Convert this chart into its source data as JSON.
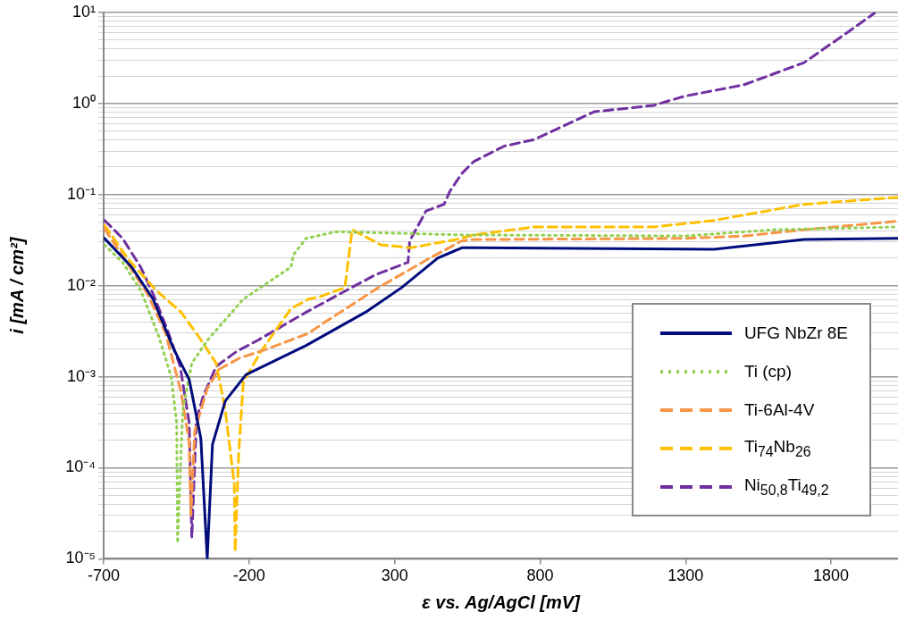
{
  "chart_data": {
    "type": "line",
    "xlabel": "ε vs. Ag/AgCl [mV]",
    "ylabel": "i [mA / cm²]",
    "xlim": [
      -700,
      2030
    ],
    "xticks": [
      -700,
      -200,
      300,
      800,
      1300,
      1800
    ],
    "ylim": [
      1e-05,
      10
    ],
    "log": "y",
    "grid": "y",
    "legend": "bottom right",
    "marker": "none",
    "yticks": [
      {
        "value": 1e-05,
        "label": "10⁻⁵"
      },
      {
        "value": 2e-05,
        "label": null
      },
      {
        "value": 3e-05,
        "label": null
      },
      {
        "value": 4e-05,
        "label": null
      },
      {
        "value": 5e-05,
        "label": null
      },
      {
        "value": 6e-05,
        "label": null
      },
      {
        "value": 7e-05,
        "label": null
      },
      {
        "value": 8e-05,
        "label": null
      },
      {
        "value": 9e-05,
        "label": null
      },
      {
        "value": 0.0001,
        "label": "10⁻⁴"
      },
      {
        "value": 0.0002,
        "label": null
      },
      {
        "value": 0.0003,
        "label": null
      },
      {
        "value": 0.0004,
        "label": null
      },
      {
        "value": 0.0005,
        "label": null
      },
      {
        "value": 0.0006,
        "label": null
      },
      {
        "value": 0.0007,
        "label": null
      },
      {
        "value": 0.0008,
        "label": null
      },
      {
        "value": 0.0009,
        "label": null
      },
      {
        "value": 0.001,
        "label": "10⁻³"
      },
      {
        "value": 0.002,
        "label": null
      },
      {
        "value": 0.003,
        "label": null
      },
      {
        "value": 0.004,
        "label": null
      },
      {
        "value": 0.005,
        "label": null
      },
      {
        "value": 0.006,
        "label": null
      },
      {
        "value": 0.007,
        "label": null
      },
      {
        "value": 0.008,
        "label": null
      },
      {
        "value": 0.009,
        "label": null
      },
      {
        "value": 0.01,
        "label": "10⁻²"
      },
      {
        "value": 0.02,
        "label": null
      },
      {
        "value": 0.03,
        "label": null
      },
      {
        "value": 0.04,
        "label": null
      },
      {
        "value": 0.05,
        "label": null
      },
      {
        "value": 0.06,
        "label": null
      },
      {
        "value": 0.07,
        "label": null
      },
      {
        "value": 0.08,
        "label": null
      },
      {
        "value": 0.09,
        "label": null
      },
      {
        "value": 0.1,
        "label": "10⁻¹"
      },
      {
        "value": 0.2,
        "label": null
      },
      {
        "value": 0.3,
        "label": null
      },
      {
        "value": 0.4,
        "label": null
      },
      {
        "value": 0.5,
        "label": null
      },
      {
        "value": 0.6,
        "label": null
      },
      {
        "value": 0.7,
        "label": null
      },
      {
        "value": 0.8,
        "label": null
      },
      {
        "value": 0.9,
        "label": null
      },
      {
        "value": 1,
        "label": "10⁰"
      },
      {
        "value": 2,
        "label": null
      },
      {
        "value": 3,
        "label": null
      },
      {
        "value": 4,
        "label": null
      },
      {
        "value": 5,
        "label": null
      },
      {
        "value": 6,
        "label": null
      },
      {
        "value": 7,
        "label": null
      },
      {
        "value": 8,
        "label": null
      },
      {
        "value": 9,
        "label": null
      },
      {
        "value": 10,
        "label": "10¹"
      }
    ],
    "series": [
      {
        "name": "UFG NbZr 8E",
        "color": "#000c7b",
        "line_style": "solid",
        "x": [
          -697,
          -604,
          -530,
          -459,
          -406,
          -366,
          -344,
          -326,
          -282,
          -211,
          -4,
          200,
          324,
          448,
          531,
          572,
          1398,
          1707,
          2030
        ],
        "values": [
          0.033,
          0.016,
          0.0071,
          0.002,
          0.00093,
          0.00021,
          1e-05,
          0.00018,
          0.00054,
          0.00105,
          0.0022,
          0.0051,
          0.0095,
          0.02,
          0.026,
          0.026,
          0.025,
          0.032,
          0.033
        ]
      },
      {
        "name": "Ti (cp)",
        "color": "#92d050",
        "line_style": "dotted",
        "x": [
          -697,
          -635,
          -573,
          -511,
          -468,
          -449,
          -446,
          -428,
          -397,
          -344,
          -220,
          -56,
          -47,
          -4,
          98,
          531,
          1296,
          1605,
          2030
        ],
        "values": [
          0.028,
          0.018,
          0.0089,
          0.0028,
          0.001,
          0.00031,
          1.5e-05,
          0.00043,
          0.0014,
          0.0025,
          0.0071,
          0.016,
          0.022,
          0.033,
          0.039,
          0.036,
          0.035,
          0.041,
          0.044
        ]
      },
      {
        "name": "Ti-6Al-4V",
        "color": "#f79646",
        "line_style": "dashed",
        "x": [
          -697,
          -604,
          -549,
          -487,
          -434,
          -406,
          -400,
          -387,
          -344,
          -304,
          -233,
          -140,
          5,
          46,
          244,
          408,
          531,
          572,
          1296,
          1500,
          1707,
          2030
        ],
        "values": [
          0.042,
          0.015,
          0.0081,
          0.003,
          0.00068,
          0.00019,
          3e-05,
          0.00025,
          0.00074,
          0.0012,
          0.0016,
          0.002,
          0.003,
          0.0037,
          0.0095,
          0.019,
          0.031,
          0.032,
          0.033,
          0.035,
          0.041,
          0.051
        ]
      },
      {
        "name": "Ti$_{74}$Nb$_{26}$",
        "color": "#ffc000",
        "line_style": "dashed",
        "x": [
          -697,
          -613,
          -520,
          -434,
          -375,
          -313,
          -282,
          -251,
          -248,
          -236,
          -220,
          -159,
          -56,
          5,
          46,
          129,
          154,
          253,
          355,
          510,
          572,
          779,
          1190,
          1398,
          1707,
          2030
        ],
        "values": [
          0.046,
          0.019,
          0.0089,
          0.0051,
          0.0028,
          0.0014,
          0.00043,
          6.6e-05,
          1.2e-05,
          0.00014,
          0.00087,
          0.0019,
          0.0056,
          0.0071,
          0.0076,
          0.0095,
          0.041,
          0.028,
          0.026,
          0.032,
          0.036,
          0.044,
          0.044,
          0.052,
          0.078,
          0.093
        ]
      },
      {
        "name": "Ni$_{50,8}$Ti$_{49,2}$",
        "color": "#7030a0",
        "line_style": "dashed",
        "x": [
          -697,
          -635,
          -573,
          -530,
          -480,
          -437,
          -406,
          -397,
          -381,
          -357,
          -313,
          -242,
          -171,
          -4,
          231,
          346,
          352,
          408,
          470,
          491,
          531,
          572,
          677,
          779,
          986,
          1190,
          1296,
          1500,
          1707,
          1862,
          1949
        ],
        "values": [
          0.052,
          0.033,
          0.016,
          0.0081,
          0.0032,
          0.0013,
          0.00031,
          1.7e-05,
          0.00034,
          0.00062,
          0.0013,
          0.0019,
          0.0025,
          0.0051,
          0.013,
          0.018,
          0.031,
          0.066,
          0.078,
          0.11,
          0.17,
          0.23,
          0.34,
          0.4,
          0.81,
          0.95,
          1.2,
          1.6,
          2.8,
          6.2,
          9.8
        ]
      }
    ]
  }
}
